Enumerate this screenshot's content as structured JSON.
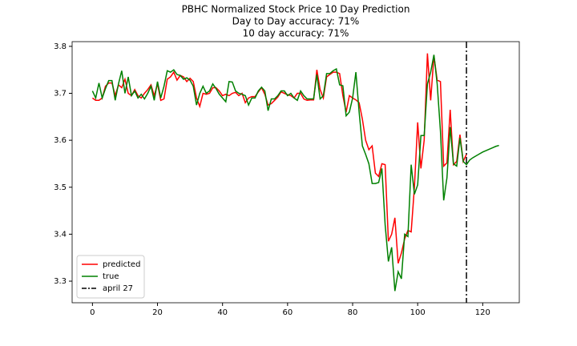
{
  "chart_data": {
    "type": "line",
    "title_lines": [
      "PBHC Normalized Stock Price 10 Day Prediction",
      "Day to Day accuracy: 71%",
      "10 day accuracy: 71%"
    ],
    "x": [
      0,
      1,
      2,
      3,
      4,
      5,
      6,
      7,
      8,
      9,
      10,
      11,
      12,
      13,
      14,
      15,
      16,
      17,
      18,
      19,
      20,
      21,
      22,
      23,
      24,
      25,
      26,
      27,
      28,
      29,
      30,
      31,
      32,
      33,
      34,
      35,
      36,
      37,
      38,
      39,
      40,
      41,
      42,
      43,
      44,
      45,
      46,
      47,
      48,
      49,
      50,
      51,
      52,
      53,
      54,
      55,
      56,
      57,
      58,
      59,
      60,
      61,
      62,
      63,
      64,
      65,
      66,
      67,
      68,
      69,
      70,
      71,
      72,
      73,
      74,
      75,
      76,
      77,
      78,
      79,
      80,
      81,
      82,
      83,
      84,
      85,
      86,
      87,
      88,
      89,
      90,
      91,
      92,
      93,
      94,
      95,
      96,
      97,
      98,
      99,
      100,
      101,
      102,
      103,
      104,
      105,
      106,
      107,
      108,
      109,
      110,
      111,
      112,
      113,
      114,
      115,
      116,
      117,
      118,
      119,
      120,
      121,
      122,
      123,
      124,
      125
    ],
    "series": [
      {
        "name": "predicted",
        "color": "#ff0000",
        "values": [
          3.69,
          3.685,
          3.685,
          3.69,
          3.715,
          3.722,
          3.722,
          3.695,
          3.718,
          3.712,
          3.73,
          3.7,
          3.695,
          3.708,
          3.695,
          3.69,
          3.7,
          3.708,
          3.718,
          3.695,
          3.72,
          3.685,
          3.688,
          3.73,
          3.735,
          3.745,
          3.728,
          3.738,
          3.735,
          3.725,
          3.732,
          3.725,
          3.69,
          3.672,
          3.7,
          3.698,
          3.7,
          3.712,
          3.712,
          3.705,
          3.695,
          3.698,
          3.695,
          3.7,
          3.702,
          3.695,
          3.7,
          3.68,
          3.69,
          3.693,
          3.693,
          3.703,
          3.712,
          3.698,
          3.675,
          3.678,
          3.685,
          3.692,
          3.703,
          3.7,
          3.697,
          3.695,
          3.69,
          3.7,
          3.7,
          3.688,
          3.685,
          3.686,
          3.686,
          3.75,
          3.708,
          3.69,
          3.735,
          3.74,
          3.745,
          3.745,
          3.742,
          3.695,
          3.66,
          3.695,
          3.69,
          3.686,
          3.68,
          3.645,
          3.6,
          3.58,
          3.588,
          3.53,
          3.523,
          3.55,
          3.548,
          3.385,
          3.4,
          3.435,
          3.338,
          3.36,
          3.39,
          3.408,
          3.405,
          3.5,
          3.638,
          3.54,
          3.6,
          3.785,
          3.685,
          3.78,
          3.728,
          3.725,
          3.545,
          3.552,
          3.665,
          3.548,
          3.555,
          3.612,
          3.555,
          3.57,
          null,
          null,
          null,
          null,
          null,
          null,
          null,
          null,
          null,
          null
        ]
      },
      {
        "name": "true",
        "color": "#008000",
        "values": [
          3.705,
          3.69,
          3.722,
          3.69,
          3.71,
          3.727,
          3.727,
          3.685,
          3.72,
          3.748,
          3.7,
          3.735,
          3.695,
          3.705,
          3.69,
          3.698,
          3.688,
          3.7,
          3.715,
          3.685,
          3.725,
          3.69,
          3.715,
          3.748,
          3.745,
          3.75,
          3.74,
          3.738,
          3.73,
          3.733,
          3.728,
          3.715,
          3.675,
          3.7,
          3.715,
          3.7,
          3.705,
          3.72,
          3.71,
          3.698,
          3.69,
          3.682,
          3.725,
          3.724,
          3.705,
          3.7,
          3.698,
          3.695,
          3.675,
          3.69,
          3.69,
          3.705,
          3.713,
          3.705,
          3.663,
          3.688,
          3.688,
          3.695,
          3.705,
          3.705,
          3.695,
          3.7,
          3.69,
          3.685,
          3.705,
          3.695,
          3.688,
          3.688,
          3.688,
          3.74,
          3.688,
          3.695,
          3.742,
          3.742,
          3.748,
          3.752,
          3.718,
          3.716,
          3.652,
          3.66,
          3.69,
          3.745,
          3.66,
          3.588,
          3.57,
          3.55,
          3.508,
          3.508,
          3.51,
          3.54,
          3.42,
          3.342,
          3.372,
          3.279,
          3.32,
          3.305,
          3.4,
          3.395,
          3.548,
          3.485,
          3.505,
          3.61,
          3.61,
          3.72,
          3.745,
          3.782,
          3.72,
          3.62,
          3.472,
          3.52,
          3.628,
          3.55,
          3.545,
          3.605,
          3.555,
          3.548,
          3.558,
          3.563,
          3.567,
          3.571,
          3.575,
          3.578,
          3.581,
          3.584,
          3.587,
          3.589
        ]
      }
    ],
    "vline": {
      "name": "april 27",
      "x": 115,
      "color": "#000000"
    },
    "xlim": [
      -6.25,
      131.25
    ],
    "xticks": [
      0,
      20,
      40,
      60,
      80,
      100,
      120
    ],
    "ylim": [
      3.254,
      3.81
    ],
    "yticks": [
      3.3,
      3.4,
      3.5,
      3.6,
      3.7,
      3.8
    ],
    "legend": "lower left"
  }
}
